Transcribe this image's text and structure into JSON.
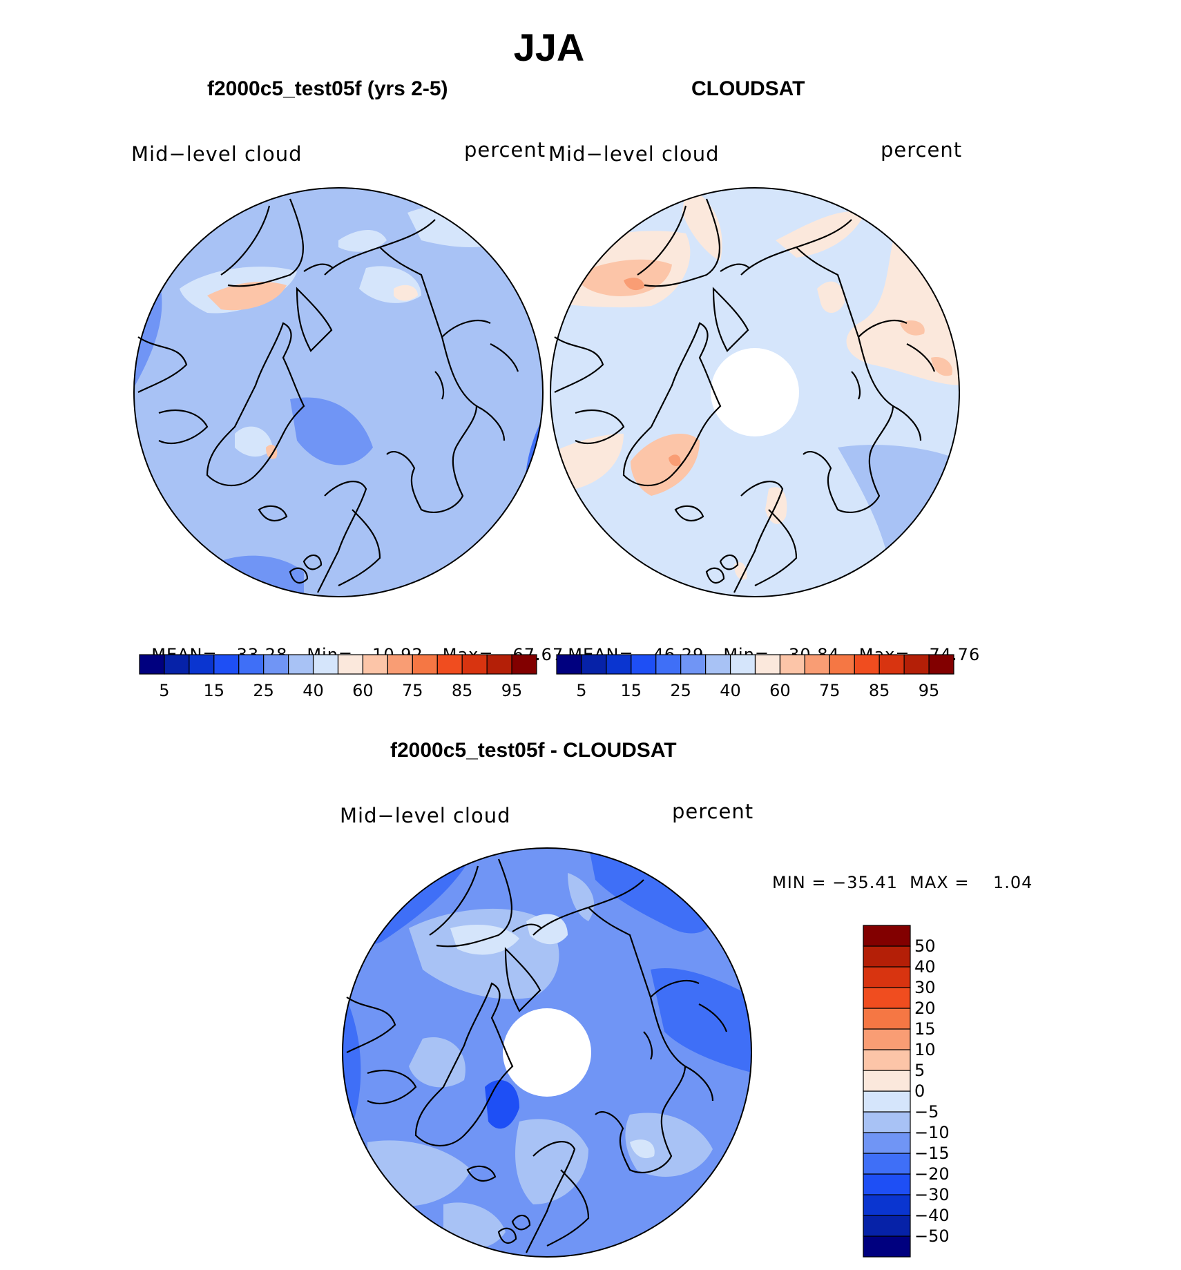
{
  "title": "JJA",
  "panels": [
    {
      "title": "f2000c5_test05f (yrs 2-5)",
      "left_label": "Mid−level cloud",
      "right_label": "percent",
      "stats": {
        "mean_label": "MEAN=",
        "mean": "33.28",
        "min_label": "Min=",
        "min": "10.92",
        "max_label": "Max=",
        "max": "67.67"
      }
    },
    {
      "title": "CLOUDSAT",
      "left_label": "Mid−level cloud",
      "right_label": "percent",
      "stats": {
        "mean_label": "MEAN=",
        "mean": "46.29",
        "min_label": "Min=",
        "min": "30.84",
        "max_label": "Max=",
        "max": "74.76"
      }
    },
    {
      "title": "f2000c5_test05f - CLOUDSAT",
      "left_label": "Mid−level cloud",
      "right_label": "percent",
      "minmax": "MIN = −35.41  MAX =    1.04"
    }
  ],
  "colorbar_abs": {
    "colors": [
      "#00007f",
      "#0622a8",
      "#0a35d0",
      "#1e4ff5",
      "#3f6ff7",
      "#7095f5",
      "#a8c2f5",
      "#d5e5fb",
      "#fbe8dc",
      "#fcc5a8",
      "#f99d74",
      "#f57744",
      "#f04d1f",
      "#d83410",
      "#b41f07",
      "#820000"
    ],
    "tick_labels": [
      "5",
      "15",
      "25",
      "40",
      "60",
      "75",
      "85",
      "95"
    ]
  },
  "colorbar_diff": {
    "colors": [
      "#00007f",
      "#0622a8",
      "#0a35d0",
      "#1e4ff5",
      "#3f6ff7",
      "#7095f5",
      "#a8c2f5",
      "#d5e5fb",
      "#fbe8dc",
      "#fcc5a8",
      "#f99d74",
      "#f57744",
      "#f04d1f",
      "#d83410",
      "#b41f07",
      "#820000"
    ],
    "tick_labels": [
      "−50",
      "−40",
      "−30",
      "−20",
      "−15",
      "−10",
      "−5",
      "0",
      "5",
      "10",
      "15",
      "20",
      "30",
      "40",
      "50"
    ]
  },
  "map_colors": {
    "base_mid": "#a8c2f5",
    "light": "#d5e5fb",
    "deep": "#7095f5",
    "deeper": "#3f6ff7",
    "peach": "#fbe8dc",
    "salmon": "#fcc5a8",
    "orange": "#f99d74",
    "coast": "#000000"
  }
}
